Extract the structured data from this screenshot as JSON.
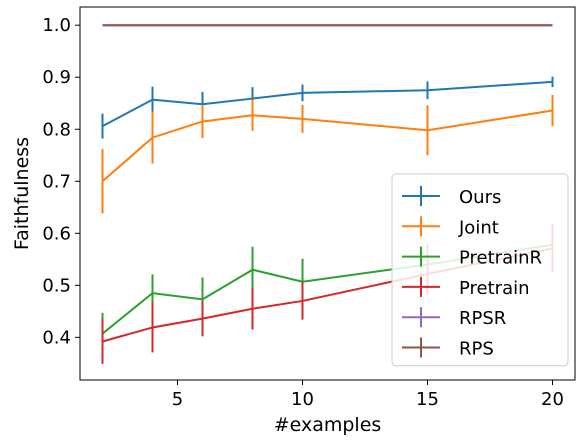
{
  "chart_data": {
    "type": "line",
    "xlabel": "#examples",
    "ylabel": "Faithfulness",
    "xlim": [
      1.1,
      20.9
    ],
    "ylim": [
      0.318,
      1.035
    ],
    "xticks": [
      5,
      10,
      15,
      20
    ],
    "xtick_labels": [
      "5",
      "10",
      "15",
      "20"
    ],
    "yticks": [
      0.4,
      0.5,
      0.6,
      0.7,
      0.8,
      0.9,
      1.0
    ],
    "ytick_labels": [
      "0.4",
      "0.5",
      "0.6",
      "0.7",
      "0.8",
      "0.9",
      "1.0"
    ],
    "x": [
      2,
      4,
      6,
      8,
      10,
      15,
      20
    ],
    "grid": false,
    "legend_position": "lower-right",
    "series": [
      {
        "name": "Ours",
        "color": "#1f77b4",
        "values": [
          0.806,
          0.857,
          0.848,
          0.859,
          0.87,
          0.875,
          0.891
        ],
        "errors": [
          0.024,
          0.025,
          0.024,
          0.022,
          0.016,
          0.017,
          0.01
        ]
      },
      {
        "name": "Joint",
        "color": "#ff7f0e",
        "values": [
          0.7,
          0.784,
          0.815,
          0.827,
          0.82,
          0.798,
          0.836
        ],
        "errors": [
          0.062,
          0.05,
          0.032,
          0.03,
          0.027,
          0.048,
          0.03
        ]
      },
      {
        "name": "PretrainR",
        "color": "#2ca02c",
        "values": [
          0.407,
          0.485,
          0.473,
          0.53,
          0.507,
          0.54,
          0.578
        ],
        "errors": [
          0.04,
          0.036,
          0.042,
          0.044,
          0.044,
          0.04,
          0.04
        ]
      },
      {
        "name": "Pretrain",
        "color": "#d62728",
        "values": [
          0.392,
          0.419,
          0.436,
          0.455,
          0.47,
          0.522,
          0.571
        ],
        "errors": [
          0.043,
          0.048,
          0.034,
          0.04,
          0.036,
          0.041,
          0.045
        ]
      },
      {
        "name": "RPSR",
        "color": "#9467bd",
        "values": [
          1.0,
          1.0,
          1.0,
          1.0,
          1.0,
          1.0,
          1.0
        ],
        "errors": [
          0,
          0,
          0,
          0,
          0,
          0,
          0
        ]
      },
      {
        "name": "RPS",
        "color": "#8c564b",
        "values": [
          1.0,
          1.0,
          1.0,
          1.0,
          1.0,
          1.0,
          1.0
        ],
        "errors": [
          0,
          0,
          0,
          0,
          0,
          0,
          0
        ]
      }
    ]
  }
}
